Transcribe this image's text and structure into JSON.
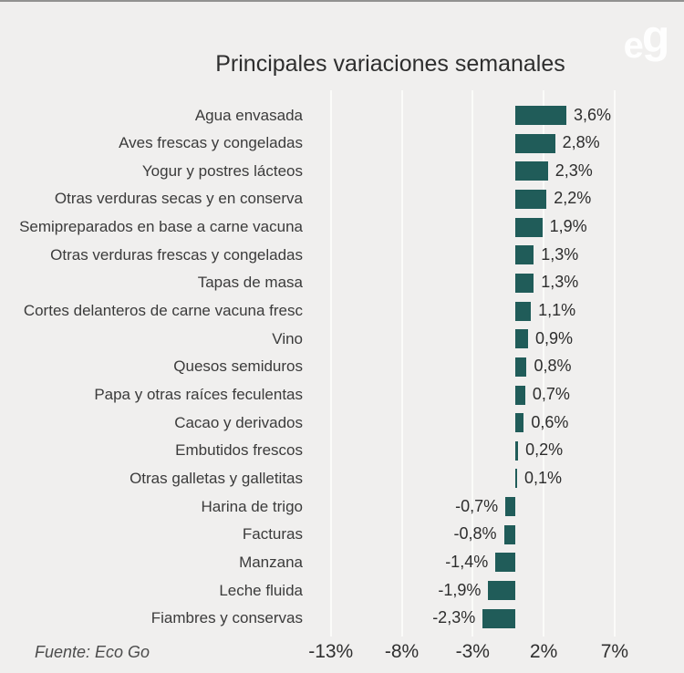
{
  "header": {
    "title": "Principales variaciones semanales",
    "logo_text_e": "e",
    "logo_text_g": "g"
  },
  "source_text": "Fuente: Eco Go",
  "colors": {
    "background": "#f0efee",
    "bar": "#205c59",
    "logo_circle": "#8dcbc3",
    "gridline": "#fbfbf9"
  },
  "chart_data": {
    "type": "bar",
    "orientation": "horizontal",
    "title": "Principales variaciones semanales",
    "categories": [
      "Agua envasada",
      "Aves frescas y congeladas",
      "Yogur y postres lácteos",
      "Otras verduras secas y en conserva",
      "Semipreparados en base a carne vacuna",
      "Otras verduras frescas y congeladas",
      "Tapas de masa",
      "Cortes delanteros de carne vacuna fresc",
      "Vino",
      "Quesos semiduros",
      "Papa y otras raíces feculentas",
      "Cacao y derivados",
      "Embutidos frescos",
      "Otras galletas y galletitas",
      "Harina de trigo",
      "Facturas",
      "Manzana",
      "Leche fluida",
      "Fiambres y conservas"
    ],
    "values": [
      3.6,
      2.8,
      2.3,
      2.2,
      1.9,
      1.3,
      1.3,
      1.1,
      0.9,
      0.8,
      0.7,
      0.6,
      0.2,
      0.1,
      -0.7,
      -0.8,
      -1.4,
      -1.9,
      -2.3
    ],
    "value_labels": [
      "3,6%",
      "2,8%",
      "2,3%",
      "2,2%",
      "1,9%",
      "1,3%",
      "1,3%",
      "1,1%",
      "0,9%",
      "0,8%",
      "0,7%",
      "0,6%",
      "0,2%",
      "0,1%",
      "-0,7%",
      "-0,8%",
      "-1,4%",
      "-1,9%",
      "-2,3%"
    ],
    "xticks": [
      -13,
      -8,
      -3,
      2,
      7
    ],
    "xtick_labels": [
      "-13%",
      "-8%",
      "-3%",
      "2%",
      "7%"
    ],
    "xlim": [
      -16.5,
      9.5
    ],
    "grid": "vertical",
    "legend": false,
    "xlabel": "",
    "ylabel": ""
  }
}
